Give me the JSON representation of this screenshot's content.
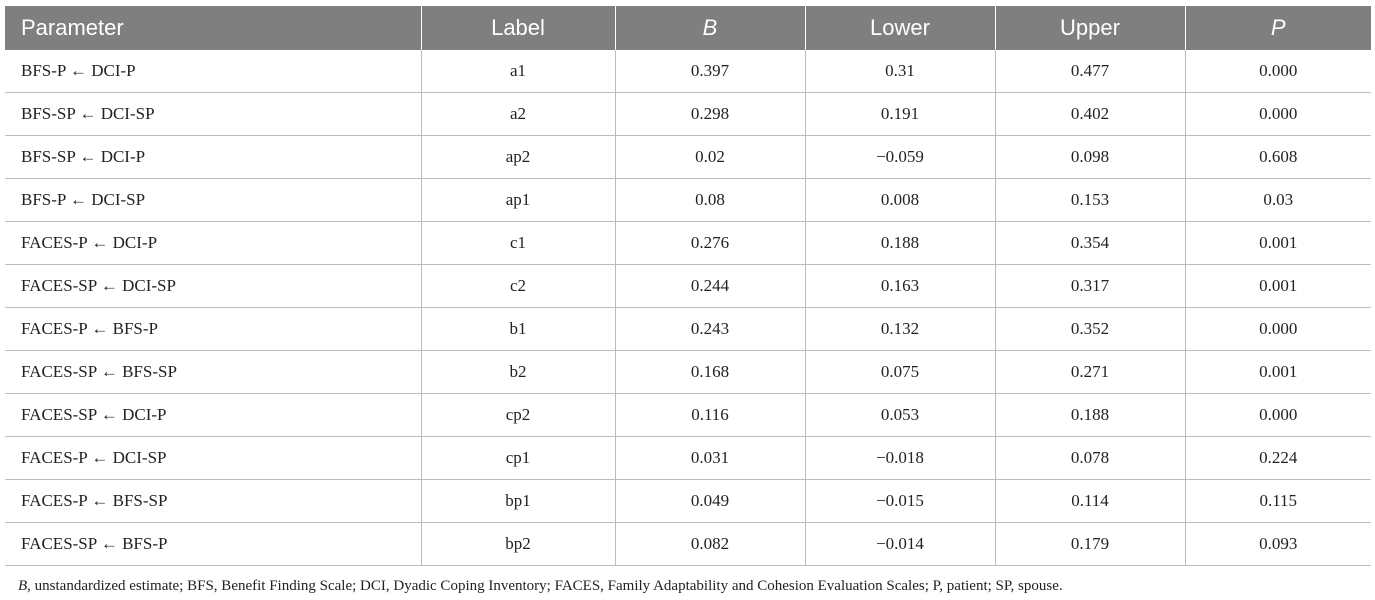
{
  "table": {
    "headers": [
      {
        "text": "Parameter",
        "italic": false
      },
      {
        "text": "Label",
        "italic": false
      },
      {
        "text": "B",
        "italic": true
      },
      {
        "text": "Lower",
        "italic": false
      },
      {
        "text": "Upper",
        "italic": false
      },
      {
        "text": "P",
        "italic": true
      }
    ],
    "rows": [
      [
        "BFS-P ← DCI-P",
        "a1",
        "0.397",
        "0.31",
        "0.477",
        "0.000"
      ],
      [
        "BFS-SP ← DCI-SP",
        "a2",
        "0.298",
        "0.191",
        "0.402",
        "0.000"
      ],
      [
        "BFS-SP ← DCI-P",
        "ap2",
        "0.02",
        "−0.059",
        "0.098",
        "0.608"
      ],
      [
        "BFS-P ← DCI-SP",
        "ap1",
        "0.08",
        "0.008",
        "0.153",
        "0.03"
      ],
      [
        "FACES-P ← DCI-P",
        "c1",
        "0.276",
        "0.188",
        "0.354",
        "0.001"
      ],
      [
        "FACES-SP ← DCI-SP",
        "c2",
        "0.244",
        "0.163",
        "0.317",
        "0.001"
      ],
      [
        "FACES-P ← BFS-P",
        "b1",
        "0.243",
        "0.132",
        "0.352",
        "0.000"
      ],
      [
        "FACES-SP ← BFS-SP",
        "b2",
        "0.168",
        "0.075",
        "0.271",
        "0.001"
      ],
      [
        "FACES-SP ← DCI-P",
        "cp2",
        "0.116",
        "0.053",
        "0.188",
        "0.000"
      ],
      [
        "FACES-P ← DCI-SP",
        "cp1",
        "0.031",
        "−0.018",
        "0.078",
        "0.224"
      ],
      [
        "FACES-P ← BFS-SP",
        "bp1",
        "0.049",
        "−0.015",
        "0.114",
        "0.115"
      ],
      [
        "FACES-SP ← BFS-P",
        "bp2",
        "0.082",
        "−0.014",
        "0.179",
        "0.093"
      ]
    ]
  },
  "footnote": {
    "lead": "B",
    "text": ", unstandardized estimate; BFS, Benefit Finding Scale; DCI, Dyadic Coping Inventory; FACES, Family Adaptability and Cohesion Evaluation Scales; P, patient; SP, spouse."
  }
}
